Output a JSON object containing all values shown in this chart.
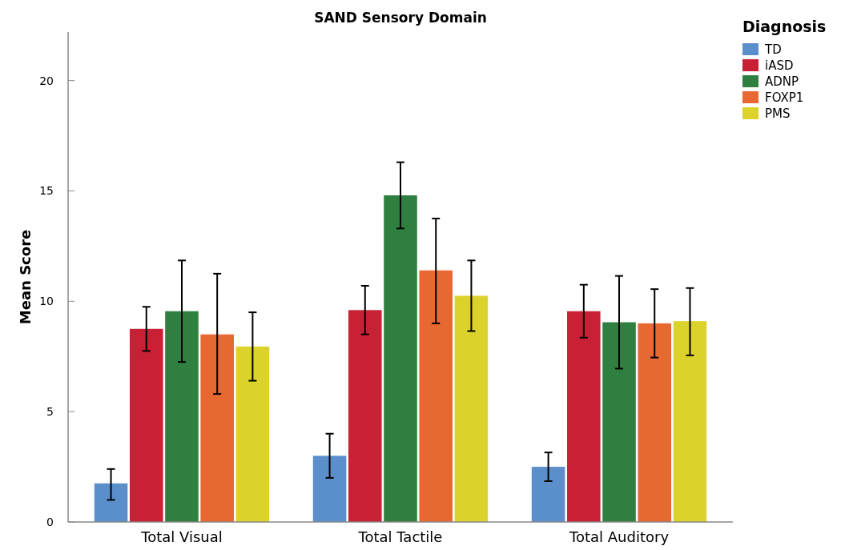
{
  "chart_data": {
    "type": "bar",
    "title": "SAND Sensory Domain",
    "ylabel": "Mean Score",
    "legend_title": "Diagnosis",
    "legend": "top right",
    "grid": false,
    "categories": [
      "Total Visual",
      "Total Tactile",
      "Total Auditory"
    ],
    "ylim": [
      0,
      22.2
    ],
    "yticks": [
      0,
      5,
      10,
      15,
      20
    ],
    "series": [
      {
        "name": "TD",
        "color": "#5b8fcc",
        "values": [
          1.75,
          3.0,
          2.5
        ],
        "errors": [
          [
            1.0,
            2.4
          ],
          [
            2.0,
            4.0
          ],
          [
            1.85,
            3.15
          ]
        ]
      },
      {
        "name": "iASD",
        "color": "#c82035",
        "values": [
          8.75,
          9.6,
          9.55
        ],
        "errors": [
          [
            7.75,
            9.75
          ],
          [
            8.5,
            10.7
          ],
          [
            8.35,
            10.75
          ]
        ]
      },
      {
        "name": "ADNP",
        "color": "#2f8040",
        "values": [
          9.55,
          14.8,
          9.05
        ],
        "errors": [
          [
            7.25,
            11.85
          ],
          [
            13.3,
            16.3
          ],
          [
            6.95,
            11.15
          ]
        ]
      },
      {
        "name": "FOXP1",
        "color": "#e86832",
        "values": [
          8.5,
          11.4,
          9.0
        ],
        "errors": [
          [
            5.8,
            11.25
          ],
          [
            9.0,
            13.75
          ],
          [
            7.45,
            10.55
          ]
        ]
      },
      {
        "name": "PMS",
        "color": "#dcd22c",
        "values": [
          7.95,
          10.25,
          9.1
        ],
        "errors": [
          [
            6.4,
            9.5
          ],
          [
            8.65,
            11.85
          ],
          [
            7.55,
            10.6
          ]
        ]
      }
    ]
  }
}
